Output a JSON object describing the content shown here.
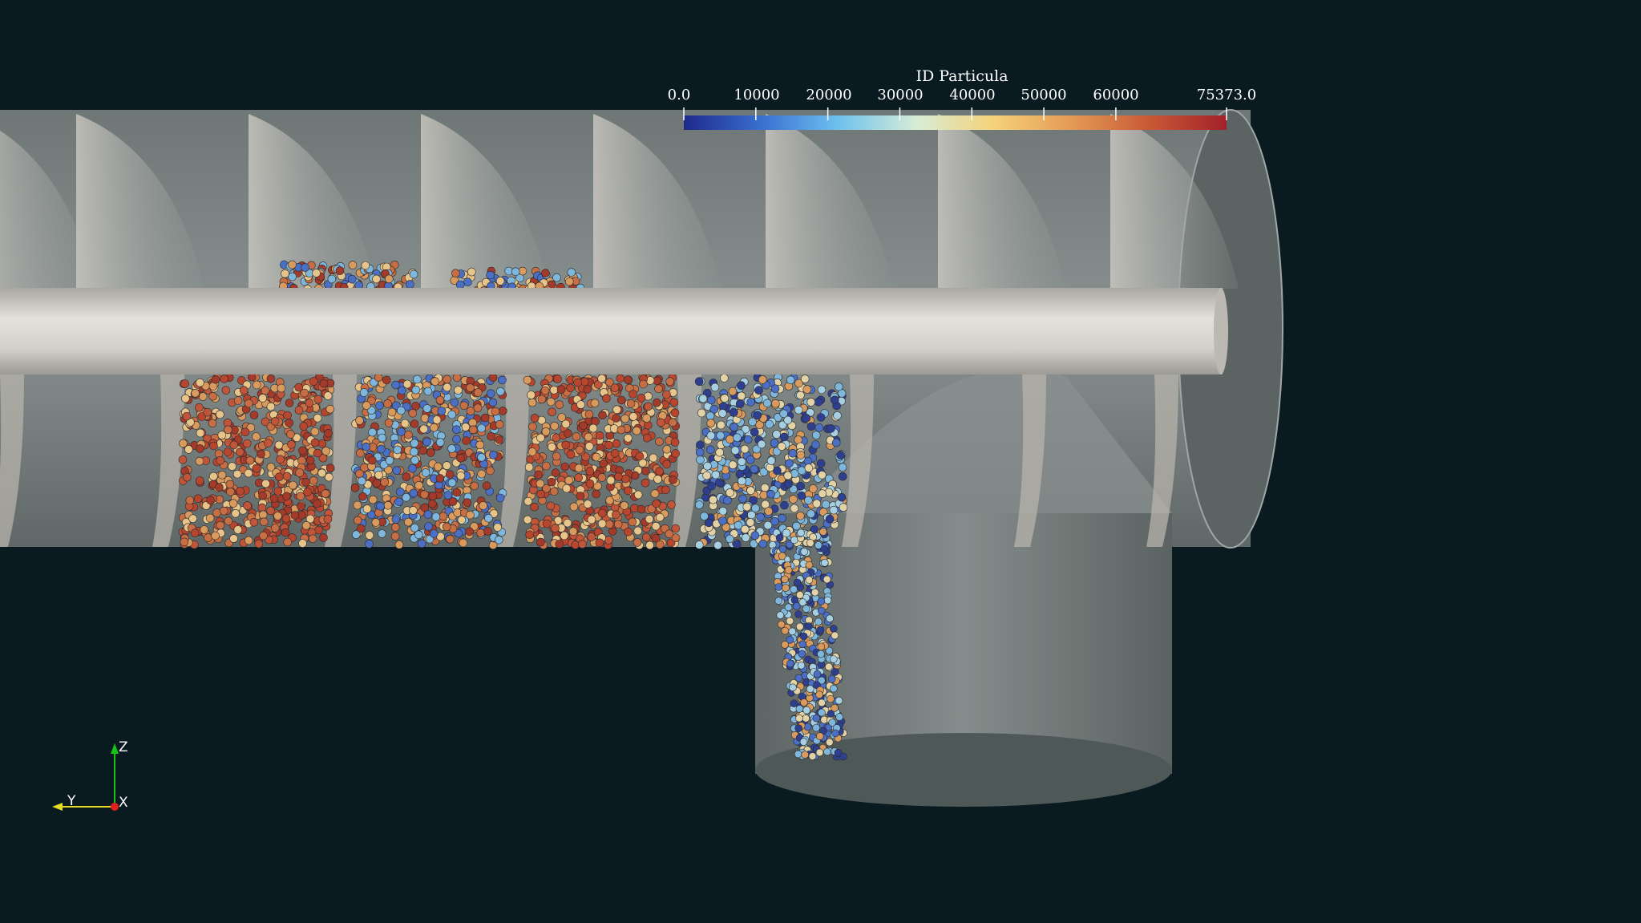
{
  "colorbar": {
    "title": "ID Particula",
    "ticks": [
      "0.0",
      "10000",
      "20000",
      "30000",
      "40000",
      "50000",
      "60000",
      "75373.0"
    ],
    "tick_values": [
      0,
      10000,
      20000,
      30000,
      40000,
      50000,
      60000,
      75373
    ],
    "range": [
      0,
      75373
    ],
    "colormap_stops": [
      "#1d2a8a",
      "#3a6fd0",
      "#6ec2ee",
      "#d8ecd6",
      "#f5d27a",
      "#e49a55",
      "#c85a36",
      "#a3202a"
    ]
  },
  "orientation_axes": {
    "z_label": "Z",
    "y_label": "Y",
    "x_label": "X",
    "z_color": "#16c316",
    "y_color": "#e6dc28",
    "x_color": "#e12020"
  },
  "scene": {
    "background": "#0a1a21",
    "geometry_color": "#8a9190",
    "shaft_color": "#d9d6d0"
  }
}
